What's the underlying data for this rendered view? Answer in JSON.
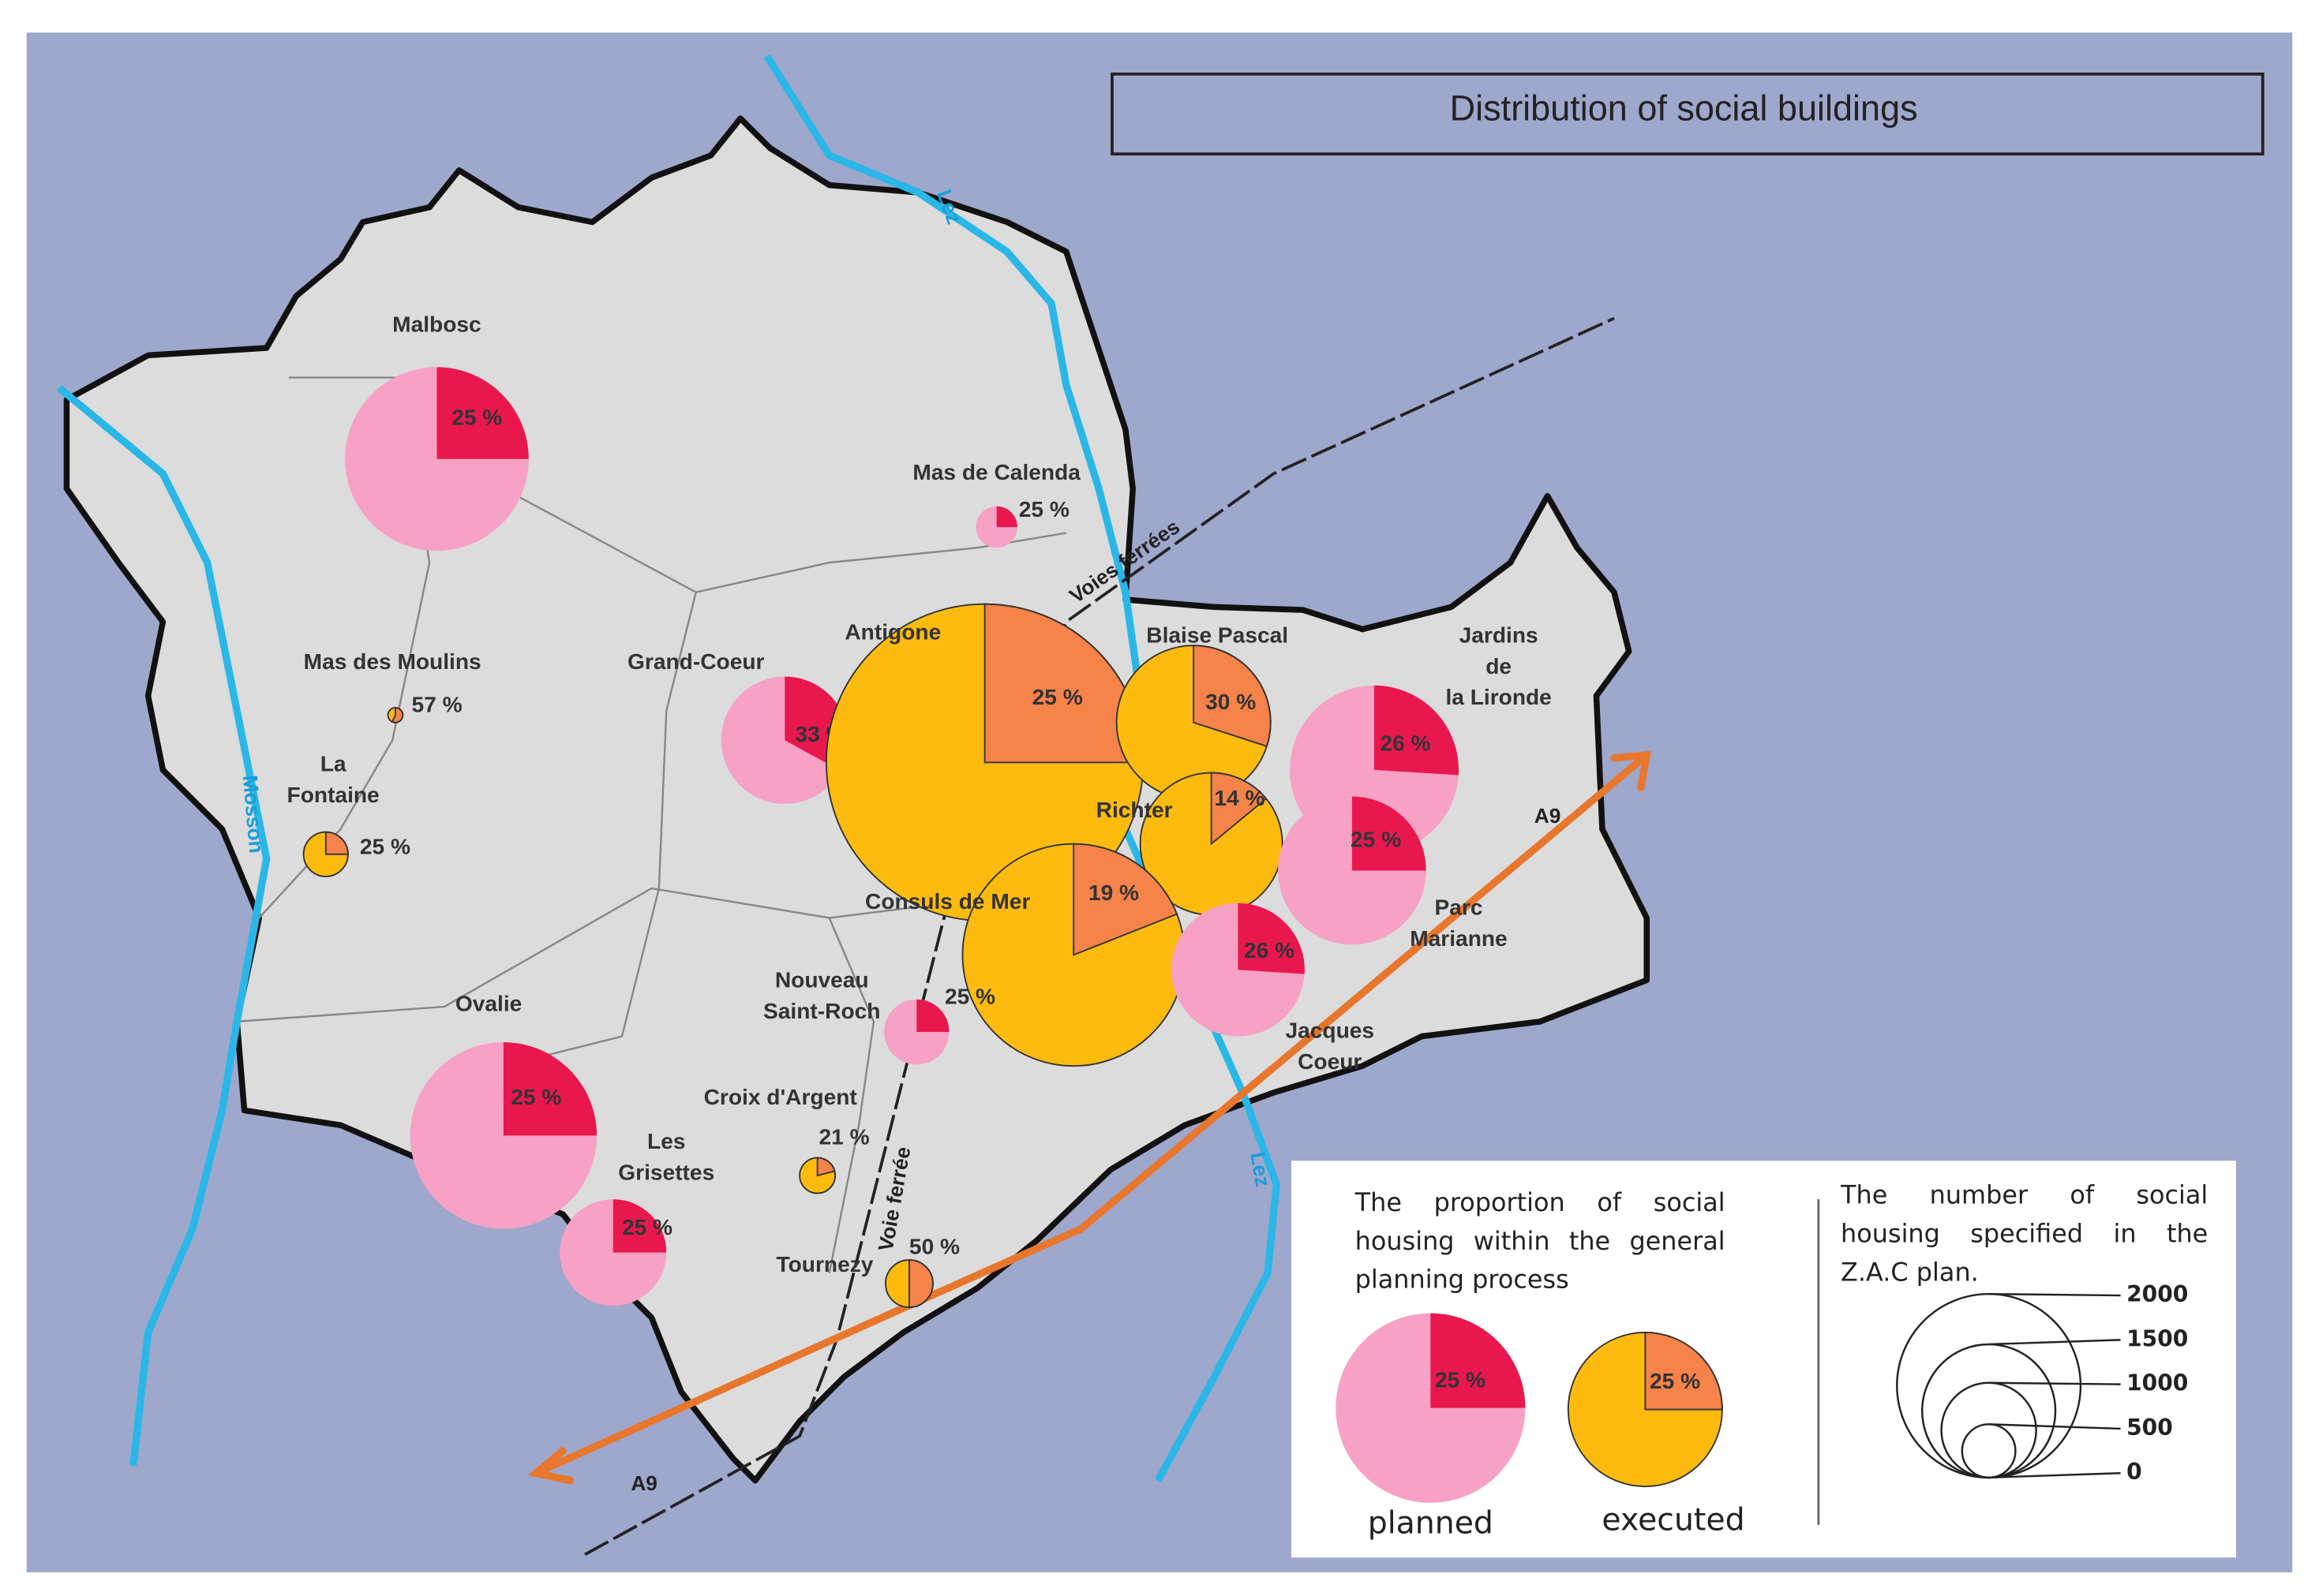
{
  "title": "Distribution of social buildings",
  "zones": [
    {
      "name": [
        "Malbosc"
      ],
      "kind": "planned",
      "percent": 25,
      "percent_label": "25 %"
    },
    {
      "name": [
        "Mas de Calenda"
      ],
      "kind": "planned",
      "percent": 25,
      "percent_label": "25 %"
    },
    {
      "name": [
        "Mas des Moulins"
      ],
      "kind": "executed",
      "percent": 57,
      "percent_label": "57 %"
    },
    {
      "name": [
        "La",
        "Fontaine"
      ],
      "kind": "executed",
      "percent": 25,
      "percent_label": "25 %"
    },
    {
      "name": [
        "Grand-Coeur"
      ],
      "kind": "planned",
      "percent": 33,
      "percent_label": "33 %"
    },
    {
      "name": [
        "Antigone"
      ],
      "kind": "executed",
      "percent": 25,
      "percent_label": "25 %"
    },
    {
      "name": [
        "Blaise Pascal"
      ],
      "kind": "executed",
      "percent": 30,
      "percent_label": "30 %"
    },
    {
      "name": [
        "Jardins",
        "de",
        "la Lironde"
      ],
      "kind": "planned",
      "percent": 26,
      "percent_label": "26 %"
    },
    {
      "name": [
        "Richter"
      ],
      "kind": "executed",
      "percent": 14,
      "percent_label": "14 %"
    },
    {
      "name": [
        "Parc",
        "Marianne"
      ],
      "kind": "planned",
      "percent": 25,
      "percent_label": "25 %"
    },
    {
      "name": [
        "Consuls de Mer"
      ],
      "kind": "executed",
      "percent": 19,
      "percent_label": "19 %"
    },
    {
      "name": [
        "Jacques",
        "Coeur"
      ],
      "kind": "planned",
      "percent": 26,
      "percent_label": "26 %"
    },
    {
      "name": [
        "Nouveau",
        "Saint-Roch"
      ],
      "kind": "planned",
      "percent": 25,
      "percent_label": "25 %"
    },
    {
      "name": [
        "Ovalie"
      ],
      "kind": "planned",
      "percent": 25,
      "percent_label": "25 %"
    },
    {
      "name": [
        "Les",
        "Grisettes"
      ],
      "kind": "planned",
      "percent": 25,
      "percent_label": "25 %"
    },
    {
      "name": [
        "Croix d'Argent"
      ],
      "kind": "executed",
      "percent": 21,
      "percent_label": "21 %"
    },
    {
      "name": [
        "Tournezy"
      ],
      "kind": "executed",
      "percent": 50,
      "percent_label": "50 %"
    }
  ],
  "map_labels": [
    "Lez",
    "Lez",
    "Mosson",
    "Voies ferrées",
    "Voie ferrée",
    "A9",
    "A9"
  ],
  "legend": {
    "share_title": "The proportion of social housing within the general planning process",
    "planned": {
      "label": "planned",
      "kind": "planned",
      "percent": 25,
      "percent_label": "25 %"
    },
    "executed": {
      "label": "executed",
      "kind": "executed",
      "percent": 25,
      "percent_label": "25 %"
    },
    "size_title": "The number of social housing specified in the Z.A.C plan.",
    "size_ticks": [
      2000,
      1500,
      1000,
      500,
      0
    ]
  },
  "colors": {
    "planned": [
      "#f7a1c4",
      "#e8184f"
    ],
    "executed": [
      "#fdbb10",
      "#f5834a"
    ]
  }
}
